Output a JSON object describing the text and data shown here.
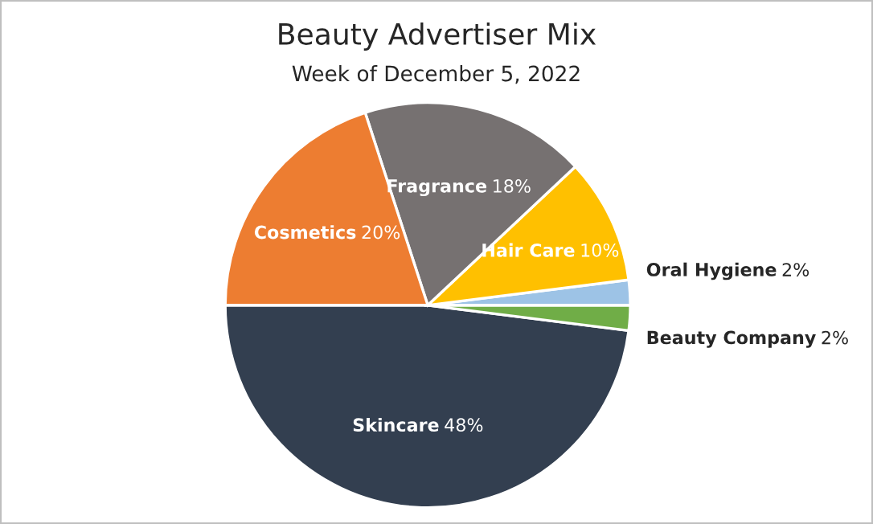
{
  "chart_data": {
    "type": "pie",
    "title": "Beauty Advertiser Mix",
    "subtitle": "Week of December 5, 2022",
    "categories": [
      "Skincare",
      "Beauty Company",
      "Oral Hygiene",
      "Hair Care",
      "Fragrance",
      "Cosmetics"
    ],
    "values": [
      48,
      2,
      2,
      10,
      18,
      20
    ],
    "colors": [
      "#333f50",
      "#70ad47",
      "#9dc3e6",
      "#ffc000",
      "#767171",
      "#ed7d31"
    ],
    "value_labels": [
      "48%",
      "2%",
      "2%",
      "10%",
      "18%",
      "20%"
    ]
  }
}
